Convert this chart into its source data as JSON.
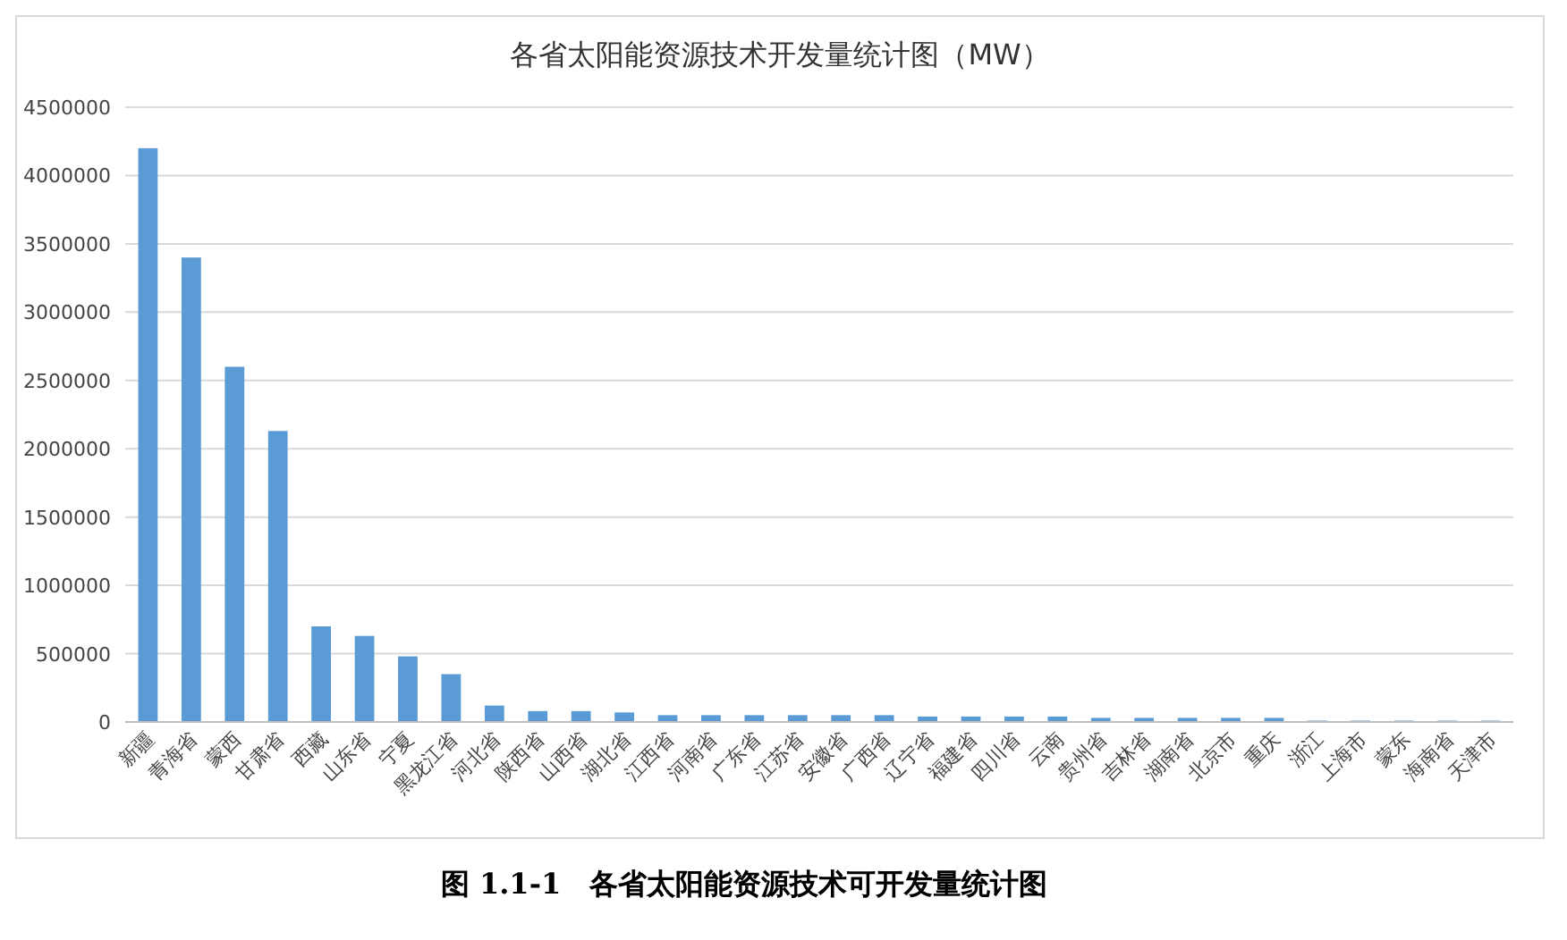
{
  "chart_data": {
    "type": "bar",
    "title": "各省太阳能资源技术开发量统计图（MW）",
    "categories": [
      "新疆",
      "青海省",
      "蒙西",
      "甘肃省",
      "西藏",
      "山东省",
      "宁夏",
      "黑龙江省",
      "河北省",
      "陕西省",
      "山西省",
      "湖北省",
      "江西省",
      "河南省",
      "广东省",
      "江苏省",
      "安徽省",
      "广西省",
      "辽宁省",
      "福建省",
      "四川省",
      "云南",
      "贵州省",
      "吉林省",
      "湖南省",
      "北京市",
      "重庆",
      "浙江",
      "上海市",
      "蒙东",
      "海南省",
      "天津市"
    ],
    "values": [
      4200000,
      3400000,
      2600000,
      2130000,
      700000,
      630000,
      480000,
      350000,
      120000,
      80000,
      80000,
      70000,
      50000,
      50000,
      50000,
      50000,
      50000,
      50000,
      40000,
      40000,
      40000,
      40000,
      30000,
      30000,
      30000,
      30000,
      30000,
      10000,
      10000,
      10000,
      10000,
      10000
    ],
    "color": "#5b9bd5",
    "ylim": [
      0,
      4500000
    ],
    "yticks": [
      0,
      500000,
      1000000,
      1500000,
      2000000,
      2500000,
      3000000,
      3500000,
      4000000,
      4500000
    ],
    "grid": "y",
    "annotations": [
      "图 1.1-1　各省太阳能资源技术可开发量统计图"
    ]
  }
}
